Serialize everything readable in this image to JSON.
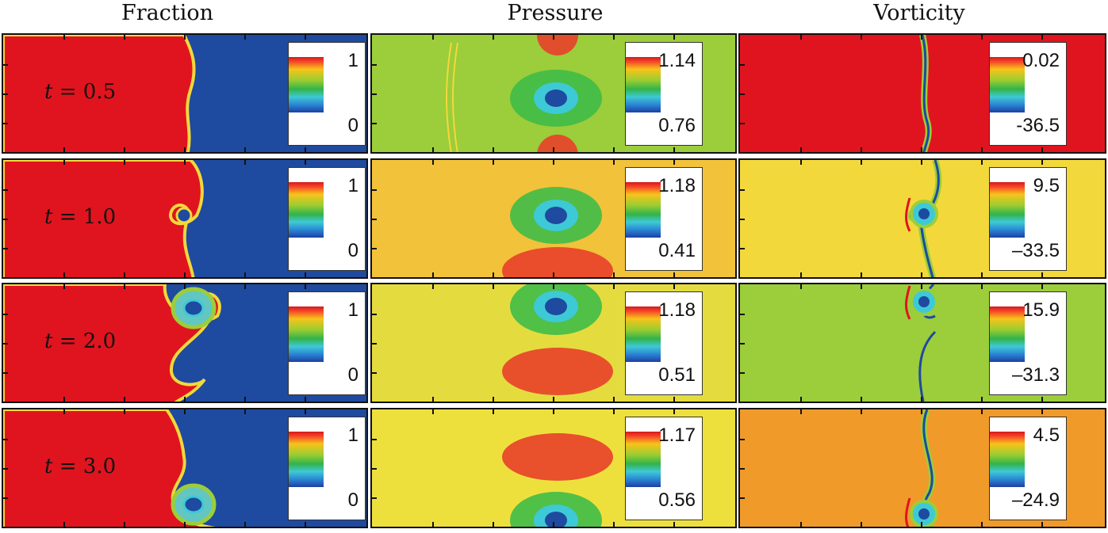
{
  "columns": [
    {
      "title": "Fraction"
    },
    {
      "title": "Pressure"
    },
    {
      "title": "Vorticity"
    }
  ],
  "rows": [
    {
      "t_var": "t",
      "t_eq": " = ",
      "t_val": "0.5",
      "fraction": {
        "max": "1",
        "min": "0",
        "bg": "#e0141e"
      },
      "pressure": {
        "max": "1.14",
        "min": "0.76",
        "bg": "#9ccd3a"
      },
      "vorticity": {
        "max": "0.02",
        "min": "-36.5",
        "bg": "#e0141e"
      }
    },
    {
      "t_var": "t",
      "t_eq": " = ",
      "t_val": "1.0",
      "fraction": {
        "max": "1",
        "min": "0",
        "bg": "#e0141e"
      },
      "pressure": {
        "max": "1.18",
        "min": "0.41",
        "bg": "#f2c23a"
      },
      "vorticity": {
        "max": "9.5",
        "min": "–33.5",
        "bg": "#f3d83c"
      }
    },
    {
      "t_var": "t",
      "t_eq": " = ",
      "t_val": "2.0",
      "fraction": {
        "max": "1",
        "min": "0",
        "bg": "#e0141e"
      },
      "pressure": {
        "max": "1.18",
        "min": "0.51",
        "bg": "#e4dc3e"
      },
      "vorticity": {
        "max": "15.9",
        "min": "–31.3",
        "bg": "#9ccd3a"
      }
    },
    {
      "t_var": "t",
      "t_eq": " = ",
      "t_val": "3.0",
      "fraction": {
        "max": "1",
        "min": "0",
        "bg": "#e0141e"
      },
      "pressure": {
        "max": "1.17",
        "min": "0.56",
        "bg": "#eee03c"
      },
      "vorticity": {
        "max": "4.5",
        "min": "–24.9",
        "bg": "#f09a2a"
      }
    }
  ],
  "colors": {
    "red": "#e0141e",
    "orange": "#f39a2a",
    "yellow": "#f3d83c",
    "green": "#9ccd3a",
    "cyan": "#3ec9d6",
    "blue": "#1e4aa0",
    "darkblue": "#123a9a"
  }
}
